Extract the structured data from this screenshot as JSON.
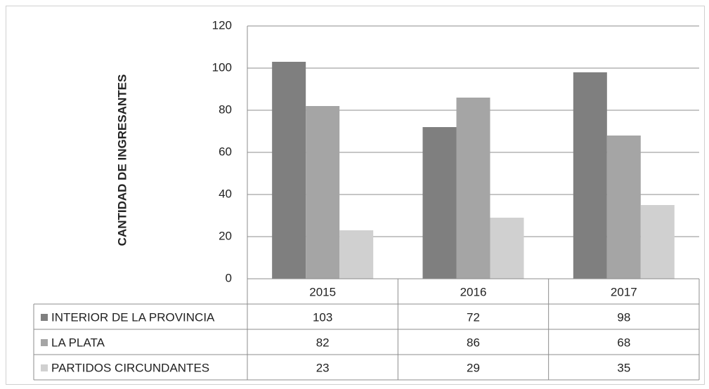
{
  "chart_data": {
    "type": "bar",
    "y_label": "CANTIDAD DE INGRESANTES",
    "categories": [
      "2015",
      "2016",
      "2017"
    ],
    "series": [
      {
        "name": "INTERIOR DE LA PROVINCIA",
        "color": "#7f7f7f",
        "values": [
          103,
          72,
          98
        ]
      },
      {
        "name": "LA PLATA",
        "color": "#a5a5a5",
        "values": [
          82,
          86,
          68
        ]
      },
      {
        "name": "PARTIDOS CIRCUNDANTES",
        "color": "#d0d0d0",
        "values": [
          23,
          29,
          35
        ]
      }
    ],
    "ylim": [
      0,
      120
    ],
    "yticks": [
      0,
      20,
      40,
      60,
      80,
      100,
      120
    ],
    "grid": true,
    "data_table": true
  }
}
